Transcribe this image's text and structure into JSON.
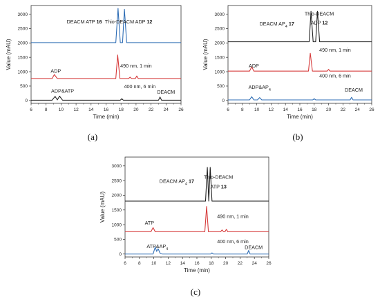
{
  "chart_data": [
    {
      "panel_label": "(a)",
      "type": "line",
      "xlabel": "Time (min)",
      "ylabel": "Value (mAU)",
      "xlim": [
        6,
        26
      ],
      "ylim": [
        -100,
        3300
      ],
      "xticks": [
        6,
        8,
        10,
        12,
        14,
        16,
        18,
        20,
        22,
        24,
        26
      ],
      "yticks": [
        0,
        500,
        1000,
        1500,
        2000,
        2500,
        3000
      ],
      "annotations": [
        {
          "text": "ADP",
          "x": 9.3,
          "y": 960
        },
        {
          "text": "490 nm, 1 min",
          "x": 20.0,
          "y": 1150
        },
        {
          "text": "ADP&ATP",
          "x": 10.2,
          "y": 270
        },
        {
          "text": "400 nm, 6 min",
          "x": 20.5,
          "y": 430
        },
        {
          "text": "DEACM",
          "x": 24.0,
          "y": 240
        }
      ],
      "trace_labels": [
        {
          "parts": [
            {
              "t": "DEACM ATP ",
              "b": false
            },
            {
              "t": "16",
              "b": true
            }
          ],
          "x": 13.1,
          "y": 2680
        },
        {
          "parts": [
            {
              "t": "Thio-DEACM ADP ",
              "b": false
            },
            {
              "t": "12",
              "b": true
            }
          ],
          "x": 19.0,
          "y": 2680
        }
      ],
      "series": [
        {
          "color": "#2e6db5",
          "points": [
            [
              6,
              2010
            ],
            [
              17.3,
              2010
            ],
            [
              17.6,
              3200
            ],
            [
              17.9,
              2010
            ],
            [
              18.2,
              2010
            ],
            [
              18.45,
              3170
            ],
            [
              18.75,
              2010
            ],
            [
              26,
              2010
            ]
          ]
        },
        {
          "color": "#d63a3a",
          "points": [
            [
              6,
              760
            ],
            [
              8.8,
              760
            ],
            [
              9.1,
              900
            ],
            [
              9.5,
              760
            ],
            [
              17.3,
              760
            ],
            [
              17.55,
              1580
            ],
            [
              17.85,
              760
            ],
            [
              19.0,
              760
            ],
            [
              19.2,
              810
            ],
            [
              19.4,
              760
            ],
            [
              19.9,
              760
            ],
            [
              20.1,
              850
            ],
            [
              20.3,
              760
            ],
            [
              26,
              760
            ]
          ]
        },
        {
          "color": "#222222",
          "points": [
            [
              6,
              10
            ],
            [
              8.8,
              10
            ],
            [
              9.2,
              140
            ],
            [
              9.5,
              20
            ],
            [
              9.8,
              150
            ],
            [
              10.2,
              10
            ],
            [
              17.9,
              10
            ],
            [
              18.1,
              60
            ],
            [
              18.3,
              10
            ],
            [
              23.0,
              10
            ],
            [
              23.2,
              120
            ],
            [
              23.4,
              10
            ],
            [
              26,
              10
            ]
          ]
        }
      ]
    },
    {
      "panel_label": "(b)",
      "type": "line",
      "xlabel": "Time (min)",
      "ylabel": "Value (mAU)",
      "xlim": [
        6,
        26
      ],
      "ylim": [
        -100,
        3300
      ],
      "xticks": [
        6,
        8,
        10,
        12,
        14,
        16,
        18,
        20,
        22,
        24,
        26
      ],
      "yticks": [
        0,
        500,
        1000,
        1500,
        2000,
        2500,
        3000
      ],
      "annotations": [
        {
          "text": "ADP",
          "x": 9.6,
          "y": 1150
        },
        {
          "text": "490 nm, 1 min",
          "x": 20.9,
          "y": 1700
        },
        {
          "text": "ADP&AP4",
          "x": 10.4,
          "y": 400
        },
        {
          "text": "400 nm, 6 min",
          "x": 20.9,
          "y": 800
        },
        {
          "text": "DEACM",
          "x": 23.5,
          "y": 310
        }
      ],
      "trace_labels": [
        {
          "parts": [
            {
              "t": "DEACM AP",
              "b": false
            },
            {
              "t": "4",
              "b": false,
              "sub": true
            },
            {
              "t": " 17",
              "b": true
            }
          ],
          "x": 12.8,
          "y": 2600
        },
        {
          "parts": [
            {
              "t": "Thio-DEACM",
              "b": false
            }
          ],
          "x": 18.7,
          "y": 2950
        },
        {
          "parts": [
            {
              "t": "ADP ",
              "b": false
            },
            {
              "t": "12",
              "b": true
            }
          ],
          "x": 18.7,
          "y": 2640
        }
      ],
      "series": [
        {
          "color": "#222222",
          "points": [
            [
              6,
              2040
            ],
            [
              17.3,
              2040
            ],
            [
              17.55,
              3100
            ],
            [
              17.85,
              2040
            ],
            [
              18.2,
              2040
            ],
            [
              18.45,
              3100
            ],
            [
              18.75,
              2040
            ],
            [
              26,
              2040
            ]
          ]
        },
        {
          "color": "#d63a3a",
          "points": [
            [
              6,
              1020
            ],
            [
              9.0,
              1020
            ],
            [
              9.3,
              1170
            ],
            [
              9.6,
              1020
            ],
            [
              17.2,
              1020
            ],
            [
              17.45,
              1640
            ],
            [
              17.75,
              1020
            ],
            [
              19.8,
              1020
            ],
            [
              20.0,
              1080
            ],
            [
              20.2,
              1020
            ],
            [
              26,
              1020
            ]
          ]
        },
        {
          "color": "#2e6db5",
          "points": [
            [
              6,
              20
            ],
            [
              9.0,
              20
            ],
            [
              9.3,
              130
            ],
            [
              9.6,
              20
            ],
            [
              10.1,
              20
            ],
            [
              10.4,
              100
            ],
            [
              10.7,
              20
            ],
            [
              17.8,
              20
            ],
            [
              18.0,
              60
            ],
            [
              18.2,
              20
            ],
            [
              23.0,
              20
            ],
            [
              23.2,
              110
            ],
            [
              23.4,
              20
            ],
            [
              26,
              20
            ]
          ]
        }
      ]
    },
    {
      "panel_label": "(c)",
      "type": "line",
      "xlabel": "Time (min)",
      "ylabel": "Value (mAU)",
      "xlim": [
        6,
        26
      ],
      "ylim": [
        -100,
        3300
      ],
      "xticks": [
        6,
        8,
        10,
        12,
        14,
        16,
        18,
        20,
        22,
        24,
        26
      ],
      "yticks": [
        0,
        500,
        1000,
        1500,
        2000,
        2500,
        3000
      ],
      "annotations": [
        {
          "text": "ATP",
          "x": 9.4,
          "y": 1000
        },
        {
          "text": "490 nm, 1 min",
          "x": 21.0,
          "y": 1220
        },
        {
          "text": "ATP&AP4",
          "x": 10.5,
          "y": 210
        },
        {
          "text": "400 nm, 6 min",
          "x": 21.0,
          "y": 370
        },
        {
          "text": "DEACM",
          "x": 23.9,
          "y": 170
        }
      ],
      "trace_labels": [
        {
          "parts": [
            {
              "t": "DEACM AP",
              "b": false
            },
            {
              "t": "4",
              "b": false,
              "sub": true
            },
            {
              "t": " 17",
              "b": true
            }
          ],
          "x": 13.2,
          "y": 2420
        },
        {
          "parts": [
            {
              "t": "Thio-DEACM",
              "b": false
            }
          ],
          "x": 19.0,
          "y": 2560
        },
        {
          "parts": [
            {
              "t": "ATP ",
              "b": false
            },
            {
              "t": "13",
              "b": true
            }
          ],
          "x": 19.0,
          "y": 2230
        }
      ],
      "series": [
        {
          "color": "#222222",
          "points": [
            [
              6,
              1800
            ],
            [
              17.2,
              1800
            ],
            [
              17.45,
              2950
            ],
            [
              17.65,
              1800
            ],
            [
              17.85,
              2950
            ],
            [
              18.1,
              1800
            ],
            [
              26,
              1800
            ]
          ]
        },
        {
          "color": "#d63a3a",
          "points": [
            [
              6,
              760
            ],
            [
              9.6,
              760
            ],
            [
              9.9,
              900
            ],
            [
              10.2,
              760
            ],
            [
              17.1,
              760
            ],
            [
              17.35,
              1620
            ],
            [
              17.6,
              760
            ],
            [
              19.3,
              760
            ],
            [
              19.5,
              820
            ],
            [
              19.7,
              760
            ],
            [
              19.9,
              760
            ],
            [
              20.1,
              840
            ],
            [
              20.3,
              760
            ],
            [
              26,
              760
            ]
          ]
        },
        {
          "color": "#2e6db5",
          "points": [
            [
              6,
              0
            ],
            [
              9.9,
              0
            ],
            [
              10.2,
              240
            ],
            [
              10.4,
              90
            ],
            [
              10.6,
              180
            ],
            [
              10.9,
              20
            ],
            [
              11.2,
              0
            ],
            [
              17.9,
              0
            ],
            [
              18.1,
              40
            ],
            [
              18.3,
              0
            ],
            [
              23.0,
              0
            ],
            [
              23.2,
              120
            ],
            [
              23.4,
              0
            ],
            [
              26,
              0
            ]
          ]
        }
      ]
    }
  ]
}
